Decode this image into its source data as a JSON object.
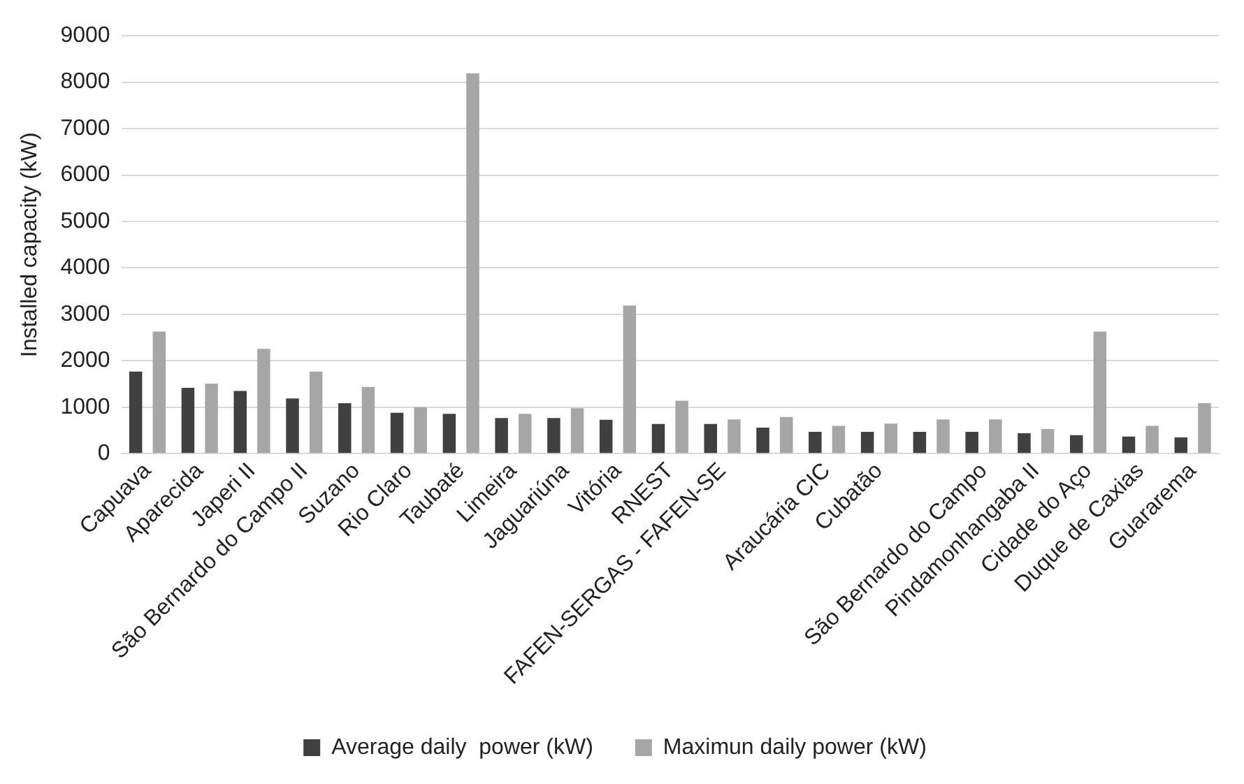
{
  "chart_data": {
    "type": "bar",
    "ylabel": "Installed capacity (kW)",
    "categories": [
      "Capuava",
      "Aparecida",
      "Japeri II",
      "São Bernardo do Campo II",
      "Suzano",
      "Rio Claro",
      "Taubaté",
      "Limeira",
      "Jaguariúna",
      "Vitória",
      "RNEST",
      "FAFEN-SERGAS - FAFEN-SE",
      null,
      "Araucária CIC",
      "Cubatão",
      null,
      "São Bernardo do Campo",
      "Pindamonhangaba II",
      "Cidade do Aço",
      "Duque de Caxias",
      "Guararema"
    ],
    "series": [
      {
        "name": "Average daily  power (kW)",
        "color": "#404040",
        "values": [
          1770,
          1420,
          1350,
          1190,
          1090,
          880,
          860,
          770,
          770,
          730,
          640,
          640,
          560,
          470,
          470,
          470,
          470,
          440,
          400,
          370,
          350
        ]
      },
      {
        "name": "Maximun daily power (kW)",
        "color": "#a6a6a6",
        "values": [
          2630,
          1510,
          2260,
          1770,
          1440,
          1000,
          8190,
          860,
          980,
          3190,
          1140,
          740,
          790,
          600,
          650,
          740,
          740,
          530,
          2630,
          600,
          1090
        ]
      }
    ],
    "ylim": [
      0,
      9000
    ],
    "yticks": [
      0,
      1000,
      2000,
      3000,
      4000,
      5000,
      6000,
      7000,
      8000,
      9000
    ],
    "grid": "y",
    "legend": "bottom"
  }
}
